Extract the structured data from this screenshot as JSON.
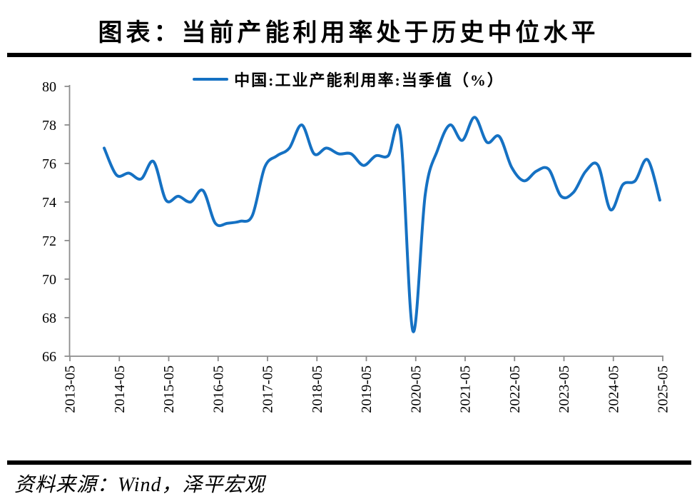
{
  "page": {
    "title": "图表：当前产能利用率处于历史中位水平",
    "source_note": "资料来源：Wind，泽平宏观"
  },
  "legend": {
    "label": "中国:工业产能利用率:当季值（%）"
  },
  "colors": {
    "line": "#1571C3",
    "axis": "#8C8C8C",
    "text": "#000000",
    "rule": "#000000"
  },
  "chart_data": {
    "type": "line",
    "title": "图表：当前产能利用率处于历史中位水平",
    "series_name": "中国:工业产能利用率:当季值（%）",
    "unit": "%",
    "frequency": "quarterly",
    "grid": false,
    "smoothing": true,
    "legend_position": "top-center",
    "ylim": [
      66,
      80
    ],
    "yticks": [
      80,
      78,
      76,
      74,
      72,
      70,
      68,
      66
    ],
    "xticks": [
      "2013-05",
      "2014-05",
      "2015-05",
      "2016-05",
      "2017-05",
      "2018-05",
      "2019-05",
      "2020-05",
      "2021-05",
      "2022-05",
      "2023-05",
      "2024-05",
      "2025-05"
    ],
    "x": [
      "2013-12",
      "2014-03",
      "2014-06",
      "2014-09",
      "2014-12",
      "2015-03",
      "2015-06",
      "2015-09",
      "2015-12",
      "2016-03",
      "2016-06",
      "2016-09",
      "2016-12",
      "2017-03",
      "2017-06",
      "2017-09",
      "2017-12",
      "2018-03",
      "2018-06",
      "2018-09",
      "2018-12",
      "2019-03",
      "2019-06",
      "2019-09",
      "2019-12",
      "2020-03",
      "2020-06",
      "2020-09",
      "2020-12",
      "2021-03",
      "2021-06",
      "2021-09",
      "2021-12",
      "2022-03",
      "2022-06",
      "2022-09",
      "2022-12",
      "2023-03",
      "2023-06",
      "2023-09",
      "2023-12",
      "2024-03",
      "2024-06",
      "2024-09",
      "2024-12",
      "2025-03"
    ],
    "values": [
      76.8,
      75.4,
      75.5,
      75.2,
      76.1,
      74.1,
      74.3,
      74.0,
      74.6,
      72.9,
      72.9,
      73.0,
      73.3,
      75.8,
      76.4,
      76.8,
      78.0,
      76.5,
      76.8,
      76.5,
      76.5,
      75.9,
      76.4,
      76.4,
      77.5,
      67.3,
      74.4,
      76.7,
      78.0,
      77.2,
      78.4,
      77.1,
      77.4,
      75.8,
      75.1,
      75.6,
      75.7,
      74.3,
      74.5,
      75.6,
      75.9,
      73.6,
      74.9,
      75.1,
      76.2,
      74.1
    ]
  }
}
